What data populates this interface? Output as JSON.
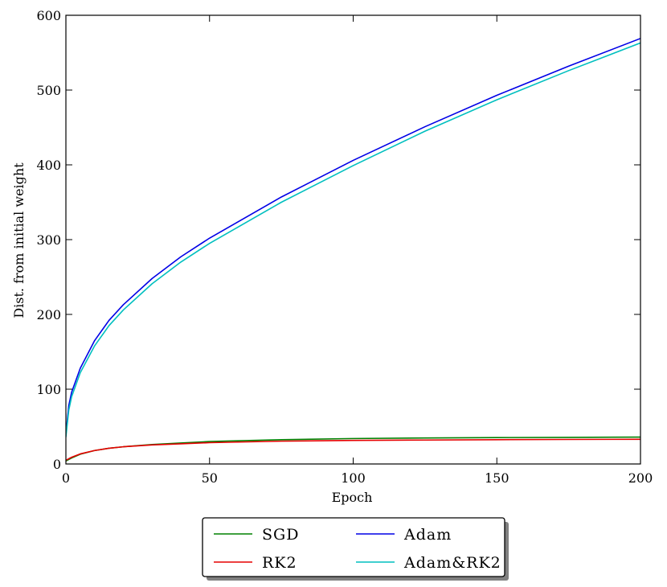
{
  "chart_data": {
    "type": "line",
    "xlabel": "Epoch",
    "ylabel": "Dist. from initial weight",
    "xlim": [
      0,
      200
    ],
    "ylim": [
      0,
      600
    ],
    "xticks": [
      "0",
      "50",
      "100",
      "150",
      "200"
    ],
    "yticks": [
      "0",
      "100",
      "200",
      "300",
      "400",
      "500",
      "600"
    ],
    "grid": false,
    "legend_position": "below plot, centered",
    "series": [
      {
        "name": "SGD",
        "color": "#008000",
        "x": [
          0,
          2,
          5,
          10,
          15,
          20,
          30,
          40,
          50,
          75,
          100,
          125,
          150,
          175,
          200
        ],
        "y": [
          4,
          8,
          13,
          18,
          21,
          23,
          26,
          28,
          30,
          32.5,
          34,
          34.8,
          35.3,
          35.6,
          36
        ]
      },
      {
        "name": "RK2",
        "color": "#e60000",
        "x": [
          0,
          2,
          5,
          10,
          15,
          20,
          30,
          40,
          50,
          75,
          100,
          125,
          150,
          175,
          200
        ],
        "y": [
          5,
          9,
          13.5,
          18,
          21,
          23,
          25.5,
          27,
          28.5,
          30.5,
          31.5,
          32,
          32.5,
          32.8,
          33
        ]
      },
      {
        "name": "Adam",
        "color": "#0000e6",
        "x": [
          0,
          1,
          2,
          5,
          10,
          15,
          20,
          30,
          40,
          50,
          75,
          100,
          125,
          150,
          175,
          200
        ],
        "y": [
          40,
          78,
          96,
          128,
          165,
          192,
          213,
          248,
          277,
          302,
          357,
          406,
          451,
          493,
          532,
          569
        ]
      },
      {
        "name": "Adam&RK2",
        "color": "#00bfbf",
        "x": [
          0,
          1,
          2,
          5,
          10,
          15,
          20,
          30,
          40,
          50,
          75,
          100,
          125,
          150,
          175,
          200
        ],
        "y": [
          36,
          72,
          90,
          122,
          158,
          185,
          206,
          241,
          270,
          295,
          350,
          399,
          445,
          487,
          526,
          563
        ]
      }
    ]
  }
}
